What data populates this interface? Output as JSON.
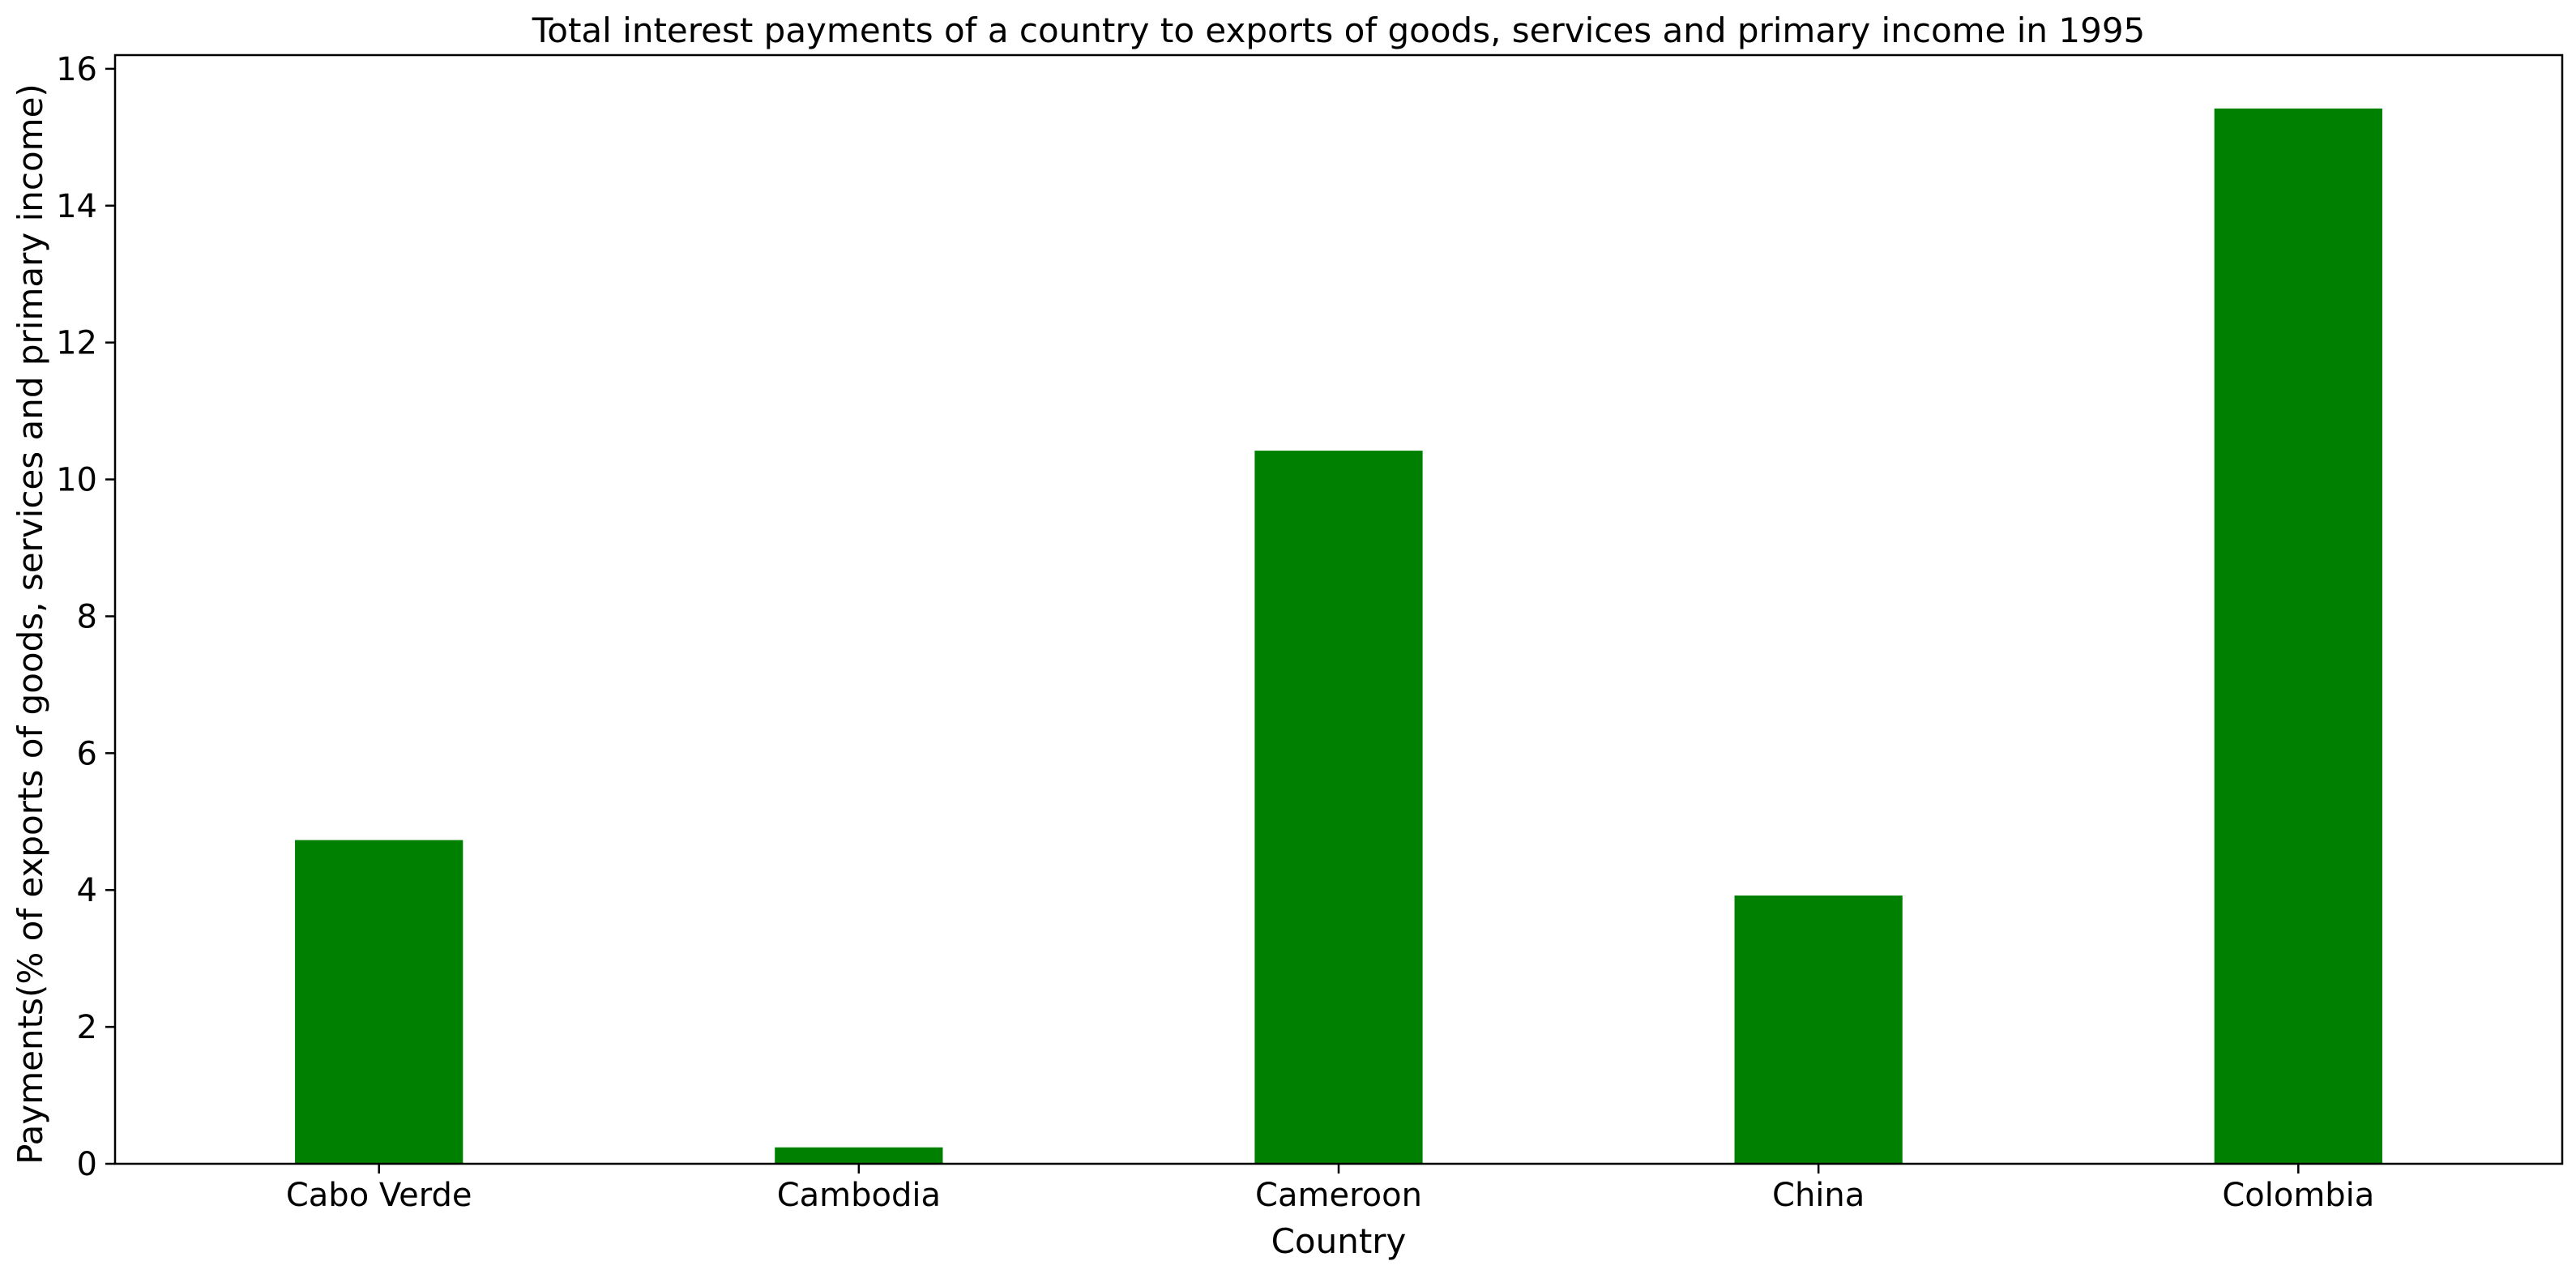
{
  "chart_data": {
    "type": "bar",
    "title": "Total interest payments of a country to exports of goods, services and primary income in 1995",
    "xlabel": "Country",
    "ylabel": "Payments(% of exports of goods, services and primary income)",
    "categories": [
      "Cabo Verde",
      "Cambodia",
      "Cameroon",
      "China",
      "Colombia"
    ],
    "values": [
      4.73,
      0.24,
      10.42,
      3.92,
      15.42
    ],
    "ylim": [
      0,
      16.2
    ],
    "yticks": [
      0,
      2,
      4,
      6,
      8,
      10,
      12,
      14,
      16
    ],
    "grid": false,
    "legend": "none",
    "bar_color": "#008000"
  }
}
